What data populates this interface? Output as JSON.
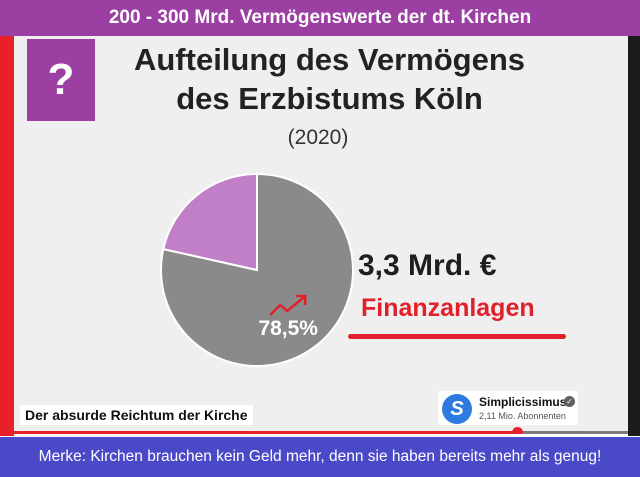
{
  "header": {
    "title": "200 - 300 Mrd. Vermögenswerte der dt. Kirchen"
  },
  "video": {
    "question_mark": "?",
    "slide": {
      "title_line1": "Aufteilung des Vermögens",
      "title_line2": "des Erzbistums Köln",
      "year": "(2020)",
      "amount": "3,3 Mrd. €",
      "category": "Finanzanlagen",
      "chart_data": {
        "type": "pie",
        "slices": [
          {
            "value": 78.5,
            "label": "78,5%",
            "color": "#8a8a8a",
            "highlighted": true
          },
          {
            "value": 21.5,
            "label": "",
            "color": "#c07fc6",
            "highlighted": false
          }
        ],
        "accent_icon": "trend-up-arrow-icon",
        "accent_color": "#e0202a"
      }
    },
    "caption": "Der absurde Reichtum der Kirche",
    "channel": {
      "logo_letter": "S",
      "name": "Simplicissimus",
      "subscribers": "2,11 Mio. Abonnenten",
      "verified_icon": "verified-check-icon"
    },
    "progress": 0.82
  },
  "footer": {
    "text": "Merke: Kirchen brauchen kein Geld mehr, denn sie haben bereits mehr als genug!"
  },
  "colors": {
    "purple": "#9b3fa3",
    "red": "#e8202a",
    "footer_blue": "#4a49c8"
  }
}
